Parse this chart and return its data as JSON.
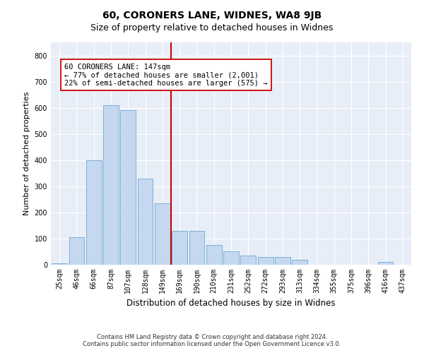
{
  "title": "60, CORONERS LANE, WIDNES, WA8 9JB",
  "subtitle": "Size of property relative to detached houses in Widnes",
  "xlabel": "Distribution of detached houses by size in Widnes",
  "ylabel": "Number of detached properties",
  "bar_labels": [
    "25sqm",
    "46sqm",
    "66sqm",
    "87sqm",
    "107sqm",
    "128sqm",
    "149sqm",
    "169sqm",
    "190sqm",
    "210sqm",
    "231sqm",
    "252sqm",
    "272sqm",
    "293sqm",
    "313sqm",
    "334sqm",
    "355sqm",
    "375sqm",
    "396sqm",
    "416sqm",
    "437sqm"
  ],
  "bar_values": [
    5,
    105,
    400,
    610,
    590,
    330,
    235,
    130,
    130,
    75,
    50,
    35,
    30,
    30,
    20,
    0,
    0,
    0,
    0,
    10,
    0
  ],
  "bar_color": "#c5d8f0",
  "bar_edge_color": "#7bafd4",
  "vline_index": 6,
  "vline_color": "#cc0000",
  "ylim": [
    0,
    850
  ],
  "yticks": [
    0,
    100,
    200,
    300,
    400,
    500,
    600,
    700,
    800
  ],
  "annotation_line1": "60 CORONERS LANE: 147sqm",
  "annotation_line2": "← 77% of detached houses are smaller (2,001)",
  "annotation_line3": "22% of semi-detached houses are larger (575) →",
  "annotation_box_color": "#ffffff",
  "annotation_box_edge": "#cc0000",
  "footer_line1": "Contains HM Land Registry data © Crown copyright and database right 2024.",
  "footer_line2": "Contains public sector information licensed under the Open Government Licence v3.0.",
  "plot_bg_color": "#e8eef8",
  "title_fontsize": 10,
  "subtitle_fontsize": 9,
  "tick_fontsize": 7,
  "ylabel_fontsize": 8,
  "xlabel_fontsize": 8.5,
  "annotation_fontsize": 7.5,
  "footer_fontsize": 6
}
